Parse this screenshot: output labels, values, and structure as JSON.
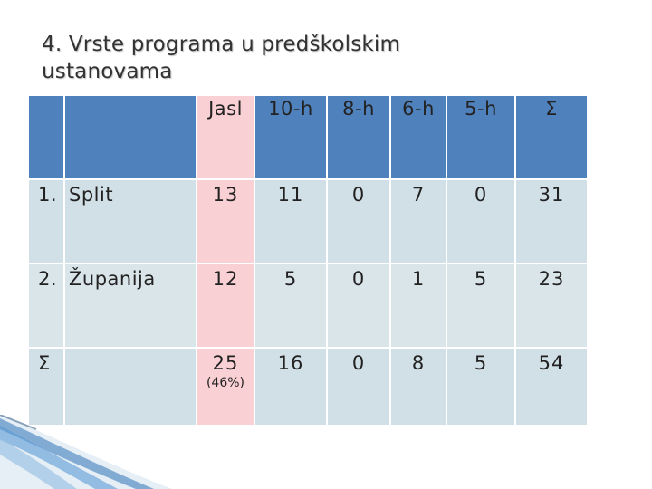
{
  "title": {
    "line1": "4. Vrste programa u predškolskim",
    "line2": "ustanovama"
  },
  "table": {
    "headers": [
      "",
      "",
      "Jasl",
      "10-h",
      "8-h",
      "6-h",
      "5-h",
      "Σ"
    ],
    "rows": [
      {
        "num": "1.",
        "name": "Split",
        "values": [
          "13",
          "11",
          "0",
          "7",
          "0",
          "31"
        ],
        "note": ""
      },
      {
        "num": "2.",
        "name": "Županija",
        "values": [
          "12",
          "5",
          "0",
          "1",
          "5",
          "23"
        ],
        "note": ""
      },
      {
        "num": "Σ",
        "name": "",
        "values": [
          "25",
          "16",
          "0",
          "8",
          "5",
          "54"
        ],
        "note": "(46%)"
      }
    ]
  },
  "colors": {
    "header_blue": "#4f81bd",
    "jasl_pink": "#f9d0d3",
    "row_light": "#dae5ea",
    "row_dark": "#d1dfe6",
    "decor_blue": "#2e75b6"
  }
}
